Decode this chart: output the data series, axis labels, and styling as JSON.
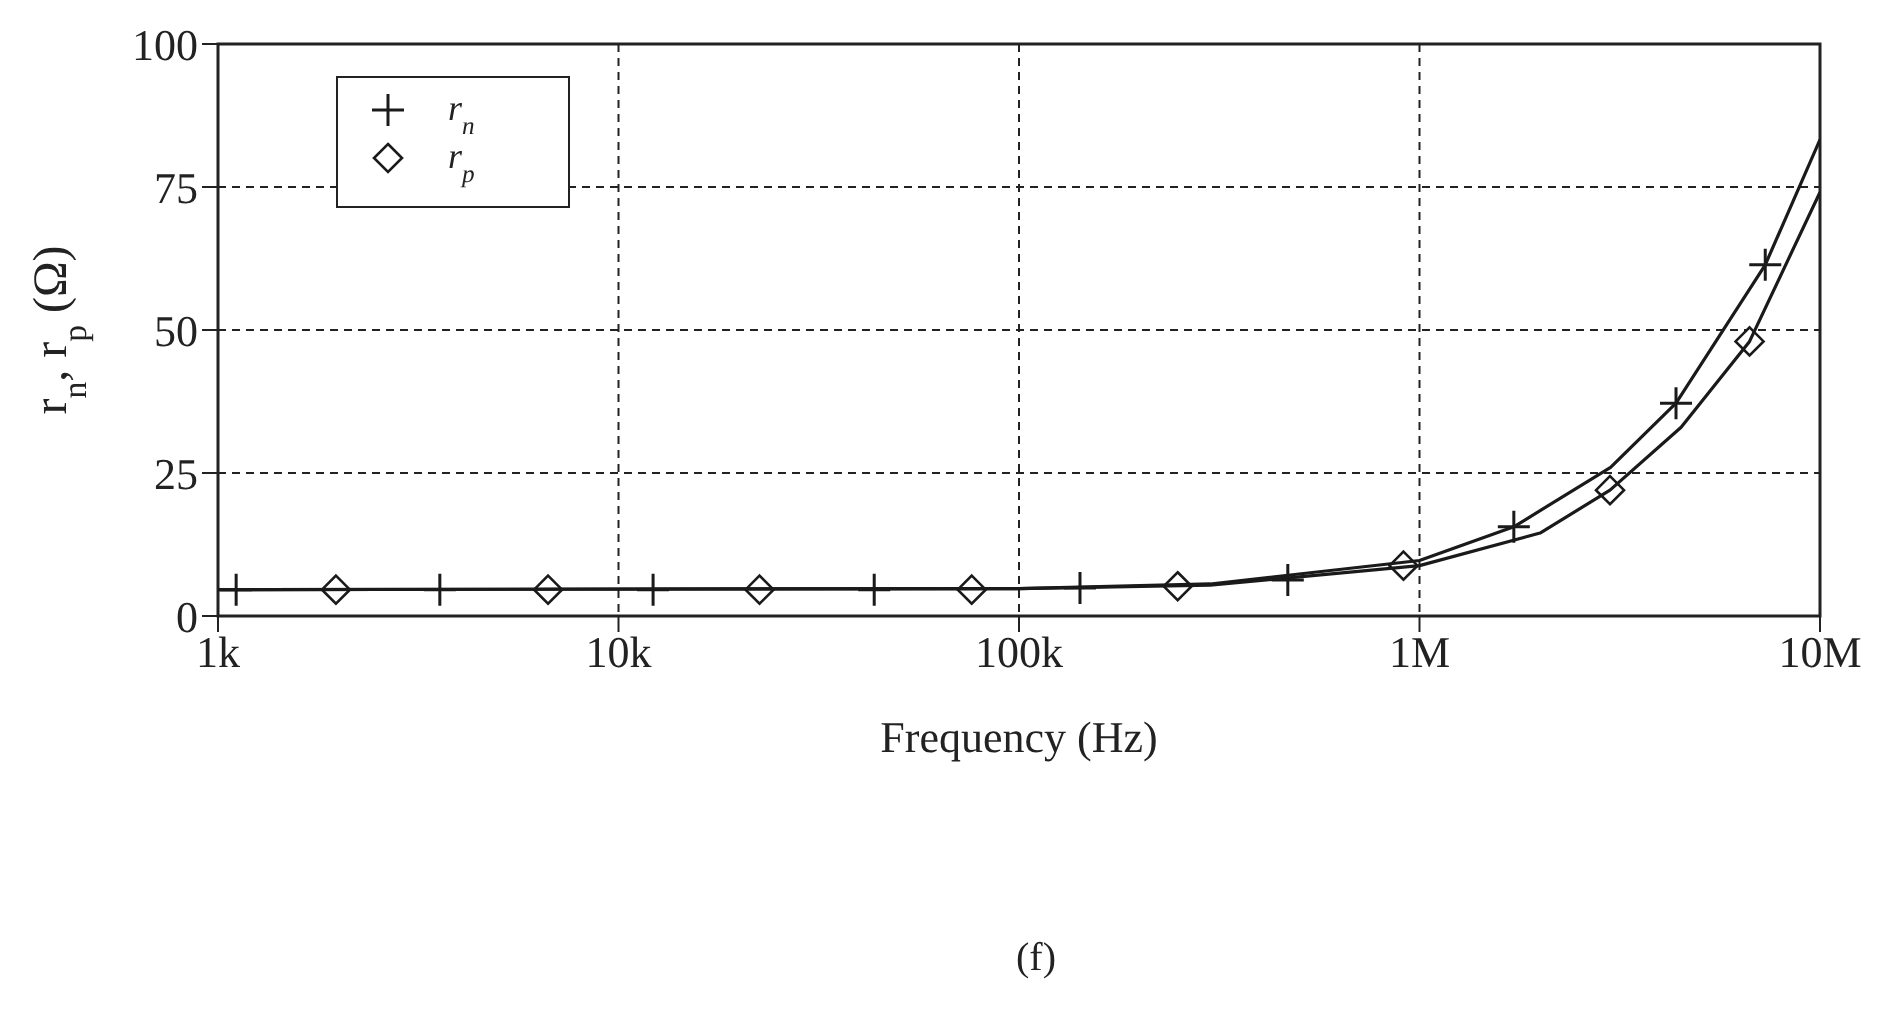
{
  "chart_data": {
    "type": "scatter",
    "xlabel": "Frequency (Hz)",
    "ylabel": "r$_{n}$, r$_{p}$ (Ω)",
    "annotations": [
      "(f)"
    ],
    "log": "x",
    "xlim": [
      1000,
      10000000
    ],
    "xticks": [
      {
        "value": 1000,
        "label": "1k"
      },
      {
        "value": 10000,
        "label": "10k"
      },
      {
        "value": 100000,
        "label": "100k"
      },
      {
        "value": 1000000,
        "label": "1M"
      },
      {
        "value": 10000000,
        "label": "10M"
      }
    ],
    "ylim": [
      0,
      100
    ],
    "yticks": [
      0,
      25,
      50,
      75,
      100
    ],
    "grid": true,
    "legend": "top left",
    "series": [
      {
        "name": "r$_{n}$",
        "color": "#1a1a1a",
        "marker": "cross",
        "x": [
          1110,
          3580,
          12200,
          43500,
          142000,
          469000,
          1720000,
          4370000,
          7300000
        ],
        "values": [
          4.6,
          4.6,
          4.6,
          4.6,
          4.9,
          6.3,
          15.6,
          37.2,
          61.4
        ]
      },
      {
        "name": "r$_{p}$",
        "color": "#1a1a1a",
        "marker": "diamond",
        "x": [
          1970,
          6670,
          22500,
          76200,
          249000,
          912000,
          2990000,
          6670000
        ],
        "values": [
          4.6,
          4.6,
          4.6,
          4.6,
          5.2,
          8.8,
          22,
          48
        ]
      },
      {
        "type": "line",
        "color": "#1a1a1a",
        "marker": "none",
        "line_style": "solid",
        "x": [
          1000,
          100000,
          300000,
          1000000,
          1720000,
          3000000,
          4370000,
          7300000,
          10000000
        ],
        "values": [
          4.6,
          4.8,
          5.6,
          9.7,
          15.6,
          26,
          37.2,
          61.4,
          83.3
        ]
      },
      {
        "type": "line",
        "color": "#1a1a1a",
        "marker": "none",
        "line_style": "solid",
        "x": [
          1000,
          100000,
          300000,
          1000000,
          2000000,
          2990000,
          4500000,
          6670000,
          10000000
        ],
        "values": [
          4.6,
          4.8,
          5.4,
          8.8,
          14.5,
          22,
          33,
          48,
          74.1
        ]
      }
    ]
  }
}
